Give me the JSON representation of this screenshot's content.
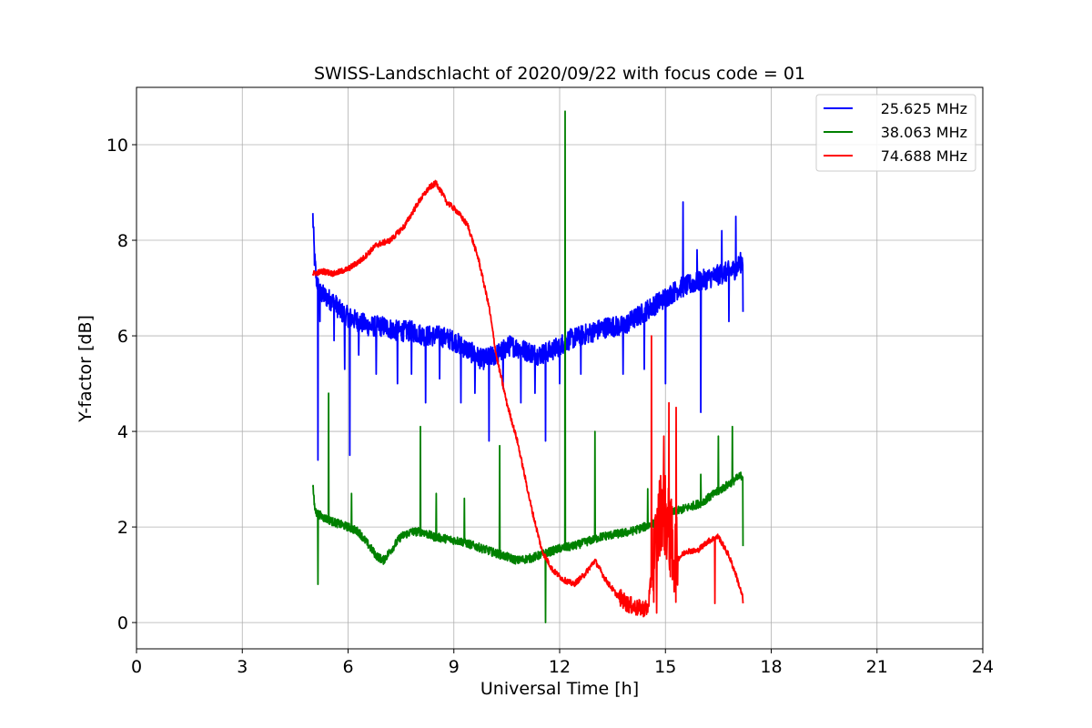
{
  "chart_data": {
    "type": "line",
    "title": "SWISS-Landschlacht of 2020/09/22 with focus code = 01",
    "xlabel": "Universal Time [h]",
    "ylabel": "Y-factor [dB]",
    "xlim": [
      0,
      24
    ],
    "ylim": [
      -0.55,
      11.2
    ],
    "xticks": [
      0,
      3,
      6,
      9,
      12,
      15,
      18,
      21,
      24
    ],
    "yticks": [
      0,
      2,
      4,
      6,
      8,
      10
    ],
    "grid": true,
    "legend_position": "top-right",
    "series": [
      {
        "name": "25.625 MHz",
        "color": "#0000ff",
        "x": [
          5.0,
          5.05,
          5.1,
          5.2,
          5.4,
          5.6,
          5.8,
          6.0,
          6.3,
          6.6,
          7.0,
          7.4,
          7.8,
          8.2,
          8.6,
          9.0,
          9.4,
          9.8,
          10.2,
          10.6,
          11.0,
          11.4,
          11.8,
          12.2,
          12.6,
          13.0,
          13.4,
          13.8,
          14.2,
          14.6,
          15.0,
          15.4,
          15.8,
          16.2,
          16.6,
          17.0,
          17.2
        ],
        "y": [
          8.5,
          7.6,
          7.2,
          6.9,
          6.8,
          6.7,
          6.5,
          6.4,
          6.3,
          6.2,
          6.2,
          6.1,
          6.1,
          6.0,
          6.0,
          5.9,
          5.7,
          5.5,
          5.6,
          5.8,
          5.7,
          5.6,
          5.7,
          5.9,
          6.0,
          6.1,
          6.2,
          6.2,
          6.4,
          6.6,
          6.8,
          7.0,
          7.1,
          7.2,
          7.3,
          7.4,
          7.6
        ],
        "spikes": [
          [
            5.15,
            3.4
          ],
          [
            5.2,
            6.3
          ],
          [
            5.6,
            5.9
          ],
          [
            5.9,
            5.3
          ],
          [
            6.05,
            3.5
          ],
          [
            6.3,
            5.6
          ],
          [
            6.8,
            5.2
          ],
          [
            7.4,
            5.0
          ],
          [
            7.8,
            5.2
          ],
          [
            8.2,
            4.6
          ],
          [
            8.6,
            5.1
          ],
          [
            9.2,
            4.6
          ],
          [
            9.6,
            4.8
          ],
          [
            10.0,
            3.8
          ],
          [
            10.4,
            4.9
          ],
          [
            10.9,
            4.6
          ],
          [
            11.3,
            4.8
          ],
          [
            11.6,
            3.8
          ],
          [
            12.0,
            5.0
          ],
          [
            12.6,
            5.2
          ],
          [
            13.8,
            5.2
          ],
          [
            14.4,
            5.3
          ],
          [
            15.0,
            5.0
          ],
          [
            16.0,
            4.4
          ],
          [
            16.8,
            6.3
          ],
          [
            17.2,
            6.5
          ],
          [
            15.5,
            8.8
          ],
          [
            15.9,
            7.8
          ],
          [
            16.6,
            8.2
          ],
          [
            17.0,
            8.5
          ]
        ]
      },
      {
        "name": "38.063 MHz",
        "color": "#008000",
        "x": [
          5.0,
          5.05,
          5.1,
          5.3,
          5.6,
          6.0,
          6.3,
          6.6,
          6.8,
          7.0,
          7.2,
          7.5,
          7.8,
          8.1,
          8.4,
          8.8,
          9.2,
          9.6,
          10.0,
          10.4,
          10.8,
          11.2,
          11.6,
          12.0,
          12.4,
          12.8,
          13.2,
          13.6,
          14.0,
          14.4,
          14.8,
          15.2,
          15.6,
          16.0,
          16.4,
          16.8,
          17.2
        ],
        "y": [
          2.9,
          2.4,
          2.3,
          2.2,
          2.1,
          2.0,
          1.9,
          1.6,
          1.4,
          1.3,
          1.5,
          1.8,
          1.9,
          1.9,
          1.8,
          1.75,
          1.7,
          1.6,
          1.5,
          1.4,
          1.3,
          1.35,
          1.45,
          1.55,
          1.6,
          1.7,
          1.8,
          1.85,
          1.9,
          2.0,
          2.1,
          2.3,
          2.4,
          2.5,
          2.7,
          2.9,
          3.1
        ],
        "spikes": [
          [
            5.15,
            0.8
          ],
          [
            5.45,
            4.8
          ],
          [
            6.1,
            2.7
          ],
          [
            8.05,
            4.1
          ],
          [
            8.5,
            2.7
          ],
          [
            9.3,
            2.6
          ],
          [
            10.3,
            3.7
          ],
          [
            11.6,
            0.0
          ],
          [
            12.15,
            10.7
          ],
          [
            13.0,
            4.0
          ],
          [
            14.5,
            2.8
          ],
          [
            16.0,
            3.1
          ],
          [
            16.5,
            3.9
          ],
          [
            16.9,
            4.1
          ],
          [
            17.2,
            1.6
          ]
        ]
      },
      {
        "name": "74.688 MHz",
        "color": "#ff0000",
        "x": [
          5.0,
          5.3,
          5.6,
          6.0,
          6.4,
          6.8,
          7.2,
          7.6,
          8.0,
          8.3,
          8.5,
          8.8,
          9.1,
          9.4,
          9.7,
          10.0,
          10.2,
          10.5,
          10.8,
          11.0,
          11.2,
          11.5,
          11.8,
          12.1,
          12.4,
          12.7,
          13.0,
          13.3,
          13.6,
          13.9,
          14.2,
          14.5,
          14.7,
          14.9,
          15.1,
          15.3,
          15.6,
          15.9,
          16.2,
          16.5,
          16.8,
          17.0,
          17.2
        ],
        "y": [
          7.3,
          7.35,
          7.3,
          7.4,
          7.6,
          7.9,
          8.0,
          8.3,
          8.8,
          9.1,
          9.2,
          8.8,
          8.6,
          8.3,
          7.6,
          6.6,
          5.6,
          4.6,
          3.8,
          3.1,
          2.4,
          1.5,
          1.1,
          0.9,
          0.8,
          1.0,
          1.3,
          0.9,
          0.6,
          0.4,
          0.3,
          0.3,
          1.5,
          2.5,
          1.9,
          1.3,
          1.5,
          1.5,
          1.7,
          1.8,
          1.4,
          1.0,
          0.5
        ],
        "spikes": [
          [
            14.6,
            6.0
          ],
          [
            14.75,
            0.2
          ],
          [
            14.95,
            3.9
          ],
          [
            15.1,
            4.6
          ],
          [
            15.2,
            0.9
          ],
          [
            15.3,
            4.5
          ],
          [
            16.4,
            0.4
          ],
          [
            17.2,
            0.4
          ]
        ]
      }
    ]
  }
}
